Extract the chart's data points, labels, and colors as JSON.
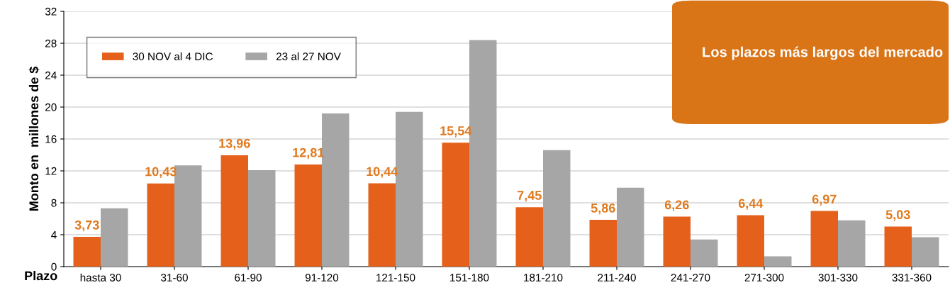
{
  "chart_data": {
    "type": "bar",
    "categories": [
      "hasta 30",
      "31-60",
      "61-90",
      "91-120",
      "121-150",
      "151-180",
      "181-210",
      "211-240",
      "241-270",
      "271-300",
      "301-330",
      "331-360"
    ],
    "series": [
      {
        "name": "30 NOV al 4 DIC",
        "color": "#e5601a",
        "values": [
          3.73,
          10.43,
          13.96,
          12.81,
          10.44,
          15.54,
          7.45,
          5.86,
          6.26,
          6.44,
          6.97,
          5.03
        ],
        "value_labels": [
          "3,73",
          "10,43",
          "13,96",
          "12,81",
          "10,44",
          "15,54",
          "7,45",
          "5,86",
          "6,26",
          "6,44",
          "6,97",
          "5,03"
        ]
      },
      {
        "name": "23 al 27 NOV",
        "color": "#a6a6a6",
        "values": [
          7.3,
          12.7,
          12.1,
          19.2,
          19.4,
          28.4,
          14.6,
          9.9,
          3.4,
          1.3,
          5.8,
          3.7
        ]
      }
    ],
    "xlabel": "Plazo",
    "ylabel": "Monto en  millones de $",
    "ylim": [
      0,
      32
    ],
    "yticks": [
      0,
      4,
      8,
      12,
      16,
      20,
      24,
      28,
      32
    ],
    "grid": "y",
    "legend": "top left",
    "annotations": [
      "Los plazos más largos del mercado"
    ]
  }
}
